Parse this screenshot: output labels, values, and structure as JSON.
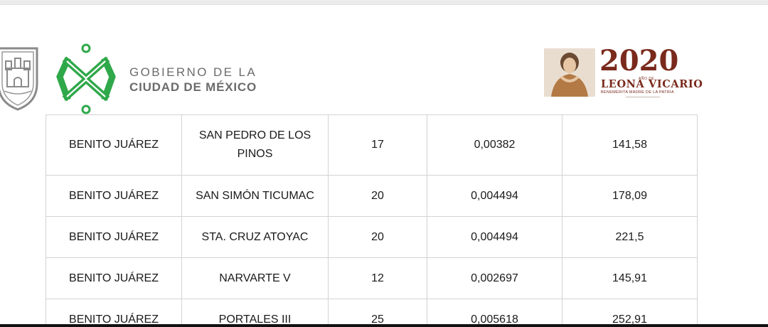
{
  "header": {
    "gov_line1": "GOBIERNO DE LA",
    "gov_line2": "CIUDAD DE MÉXICO",
    "year": "2020",
    "year_small": "AÑO DE",
    "honoree": "LEONA VICARIO",
    "honoree_sub": "BENEMÉRITA MADRE DE LA PATRIA"
  },
  "colors": {
    "cdmx_green": "#2fa84a",
    "leona_vicario_red": "#7a2a1c",
    "gov_text_gray": "#6b6b6b",
    "table_border": "#d3d3d3"
  },
  "table": {
    "rows": [
      [
        "BENITO JUÁREZ",
        "SAN PEDRO DE LOS PINOS",
        "17",
        "0,00382",
        "141,58"
      ],
      [
        "BENITO JUÁREZ",
        "SAN SIMÓN TICUMAC",
        "20",
        "0,004494",
        "178,09"
      ],
      [
        "BENITO JUÁREZ",
        "STA. CRUZ ATOYAC",
        "20",
        "0,004494",
        "221,5"
      ],
      [
        "BENITO JUÁREZ",
        "NARVARTE V",
        "12",
        "0,002697",
        "145,91"
      ],
      [
        "BENITO JUÁREZ",
        "PORTALES III",
        "25",
        "0,005618",
        "252,91"
      ]
    ]
  }
}
